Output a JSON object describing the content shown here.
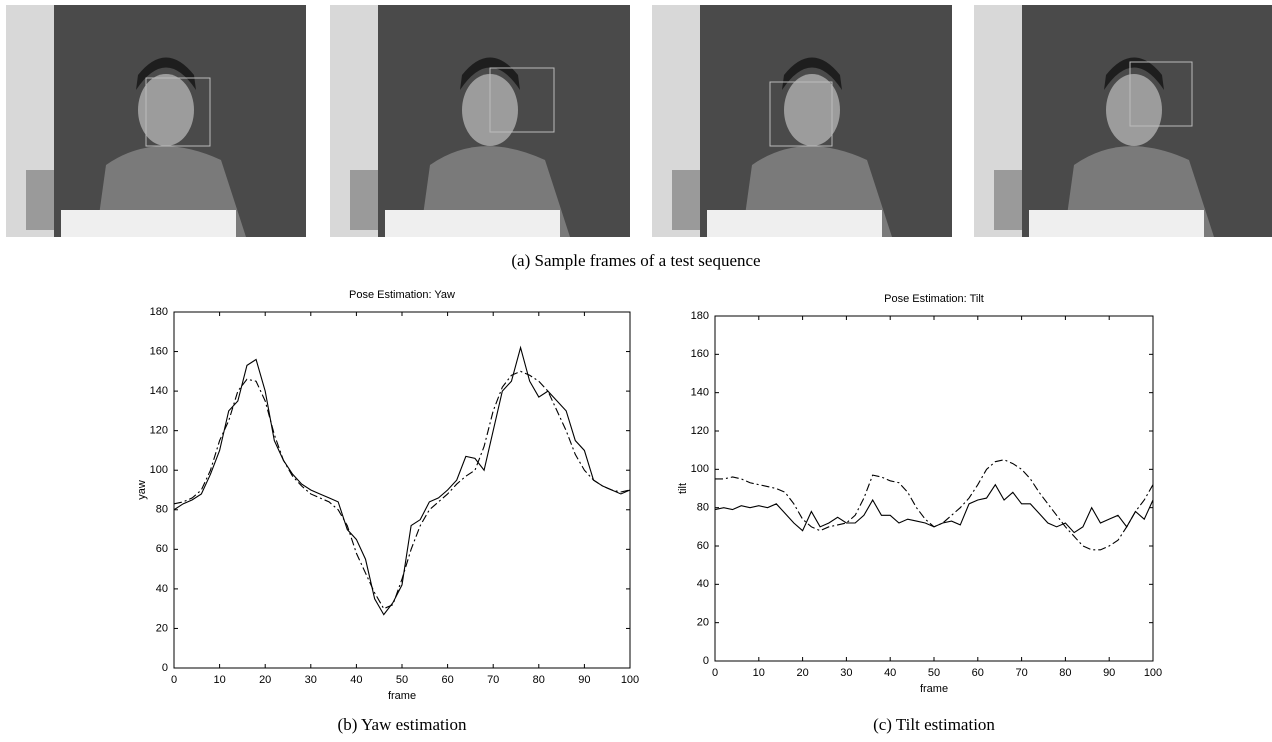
{
  "captions": [
    "(a) Sample frames of a test sequence",
    "(b) Yaw estimation",
    "(c) Tilt estimation"
  ],
  "chart_data": [
    {
      "type": "line",
      "title": "Pose Estimation: Yaw",
      "x_label": "frame",
      "y_label": "yaw",
      "x": [
        0,
        2,
        4,
        6,
        8,
        10,
        12,
        14,
        16,
        18,
        20,
        22,
        24,
        26,
        28,
        30,
        32,
        34,
        36,
        38,
        40,
        42,
        44,
        46,
        48,
        50,
        52,
        54,
        56,
        58,
        60,
        62,
        64,
        66,
        68,
        70,
        72,
        74,
        76,
        78,
        80,
        82,
        84,
        86,
        88,
        90,
        92,
        94,
        96,
        98,
        100
      ],
      "series": [
        {
          "color": "#000000",
          "line_style": "solid",
          "values": [
            80,
            83,
            85,
            88,
            98,
            110,
            130,
            135,
            153,
            156,
            140,
            115,
            105,
            98,
            93,
            90,
            88,
            86,
            84,
            70,
            65,
            55,
            35,
            27,
            33,
            42,
            72,
            75,
            84,
            86,
            90,
            95,
            107,
            106,
            100,
            120,
            140,
            145,
            162,
            145,
            137,
            140,
            135,
            130,
            115,
            110,
            95,
            92,
            90,
            88,
            90
          ]
        },
        {
          "color": "#000000",
          "line_style": "dashdot",
          "values": [
            83,
            84,
            86,
            90,
            100,
            115,
            125,
            140,
            146,
            145,
            135,
            118,
            105,
            97,
            92,
            88,
            86,
            84,
            80,
            72,
            58,
            48,
            38,
            30,
            32,
            45,
            60,
            72,
            80,
            84,
            88,
            93,
            97,
            100,
            112,
            130,
            142,
            148,
            150,
            148,
            145,
            140,
            130,
            120,
            108,
            100,
            95,
            92,
            90,
            89,
            90
          ]
        }
      ],
      "xlim": [
        0,
        100
      ],
      "xticks": [
        0,
        10,
        20,
        30,
        40,
        50,
        60,
        70,
        80,
        90,
        100
      ],
      "ylim": [
        0,
        180
      ],
      "yticks": [
        0,
        20,
        40,
        60,
        80,
        100,
        120,
        140,
        160,
        180
      ]
    },
    {
      "type": "line",
      "title": "Pose Estimation: Tilt",
      "x_label": "frame",
      "y_label": "tilt",
      "x": [
        0,
        2,
        4,
        6,
        8,
        10,
        12,
        14,
        16,
        18,
        20,
        22,
        24,
        26,
        28,
        30,
        32,
        34,
        36,
        38,
        40,
        42,
        44,
        46,
        48,
        50,
        52,
        54,
        56,
        58,
        60,
        62,
        64,
        66,
        68,
        70,
        72,
        74,
        76,
        78,
        80,
        82,
        84,
        86,
        88,
        90,
        92,
        94,
        96,
        98,
        100
      ],
      "series": [
        {
          "color": "#000000",
          "line_style": "solid",
          "values": [
            79,
            80,
            79,
            81,
            80,
            81,
            80,
            82,
            77,
            72,
            68,
            78,
            70,
            72,
            75,
            72,
            72,
            76,
            84,
            76,
            76,
            72,
            74,
            73,
            72,
            70,
            72,
            73,
            71,
            82,
            84,
            85,
            92,
            84,
            88,
            82,
            82,
            77,
            72,
            70,
            72,
            67,
            70,
            80,
            72,
            74,
            76,
            70,
            78,
            74,
            84
          ]
        },
        {
          "color": "#000000",
          "line_style": "dashdot",
          "values": [
            95,
            95,
            96,
            95,
            93,
            92,
            91,
            90,
            88,
            82,
            74,
            70,
            68,
            70,
            71,
            72,
            76,
            85,
            97,
            96,
            94,
            93,
            88,
            80,
            74,
            70,
            72,
            76,
            80,
            85,
            92,
            100,
            104,
            105,
            103,
            100,
            95,
            88,
            82,
            76,
            70,
            65,
            60,
            58,
            58,
            60,
            63,
            70,
            78,
            84,
            92
          ]
        }
      ],
      "xlim": [
        0,
        100
      ],
      "xticks": [
        0,
        10,
        20,
        30,
        40,
        50,
        60,
        70,
        80,
        90,
        100
      ],
      "ylim": [
        0,
        180
      ],
      "yticks": [
        0,
        20,
        40,
        60,
        80,
        100,
        120,
        140,
        160,
        180
      ]
    }
  ]
}
